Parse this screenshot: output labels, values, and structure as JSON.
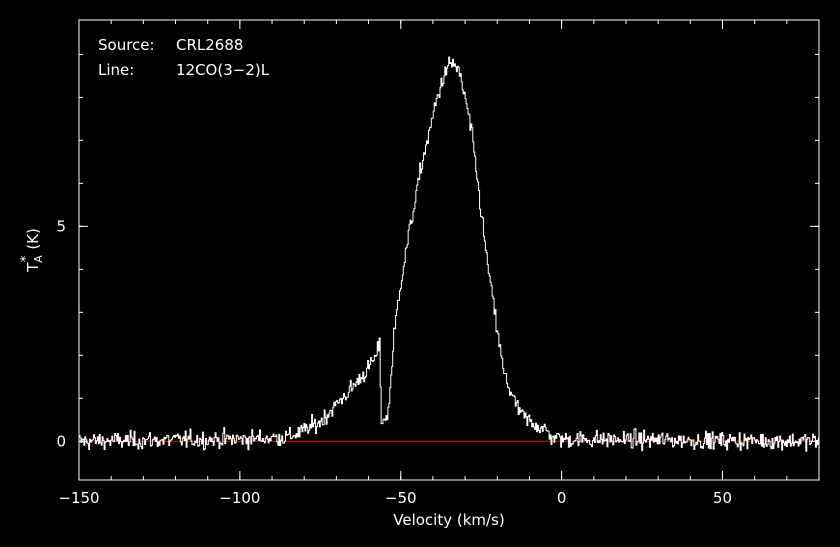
{
  "chart_data": {
    "type": "line",
    "title": "",
    "xlabel": "Velocity (km/s)",
    "ylabel": "T",
    "ylabel_sub": "A",
    "ylabel_sup": "*",
    "ylabel_unit": "(K)",
    "xlim": [
      -150,
      80
    ],
    "ylim": [
      -0.9,
      9.8
    ],
    "x_ticks": [
      -150,
      -100,
      -50,
      0,
      50
    ],
    "x_tick_labels": [
      "−150",
      "−100",
      "−50",
      "0",
      "50"
    ],
    "y_ticks": [
      0,
      5
    ],
    "y_tick_labels": [
      "0",
      "5"
    ],
    "x_minor_step": 10,
    "y_minor_step": 1,
    "grid": false,
    "annotations": [
      {
        "key": "Source:",
        "value": "CRL2688"
      },
      {
        "key": "Line:",
        "value": "12CO(3−2)L"
      }
    ],
    "baseline": {
      "y": 0,
      "color": "#e01010"
    },
    "noise_rms": 0.1,
    "series": [
      {
        "color": "#ffffff",
        "points": [
          [
            -150,
            0.0
          ],
          [
            -100,
            0.05
          ],
          [
            -85,
            0.1
          ],
          [
            -80,
            0.25
          ],
          [
            -75,
            0.45
          ],
          [
            -70,
            0.85
          ],
          [
            -65,
            1.25
          ],
          [
            -60,
            1.7
          ],
          [
            -57.5,
            2.0
          ],
          [
            -56.5,
            2.25
          ],
          [
            -56,
            0.5
          ],
          [
            -54,
            0.55
          ],
          [
            -53,
            1.5
          ],
          [
            -52,
            2.5
          ],
          [
            -50,
            3.7
          ],
          [
            -47,
            5.0
          ],
          [
            -45,
            5.8
          ],
          [
            -43,
            6.6
          ],
          [
            -41,
            7.2
          ],
          [
            -39,
            7.9
          ],
          [
            -37,
            8.4
          ],
          [
            -35,
            8.75
          ],
          [
            -33.5,
            8.8
          ],
          [
            -32,
            8.6
          ],
          [
            -30,
            8.0
          ],
          [
            -28,
            7.2
          ],
          [
            -26,
            6.0
          ],
          [
            -24,
            4.7
          ],
          [
            -22,
            3.6
          ],
          [
            -20,
            2.6
          ],
          [
            -18,
            1.6
          ],
          [
            -16,
            1.2
          ],
          [
            -14,
            0.8
          ],
          [
            -11,
            0.5
          ],
          [
            -8,
            0.4
          ],
          [
            -5,
            0.25
          ],
          [
            -3,
            0.1
          ],
          [
            0,
            0.05
          ],
          [
            80,
            0.0
          ]
        ]
      }
    ]
  }
}
